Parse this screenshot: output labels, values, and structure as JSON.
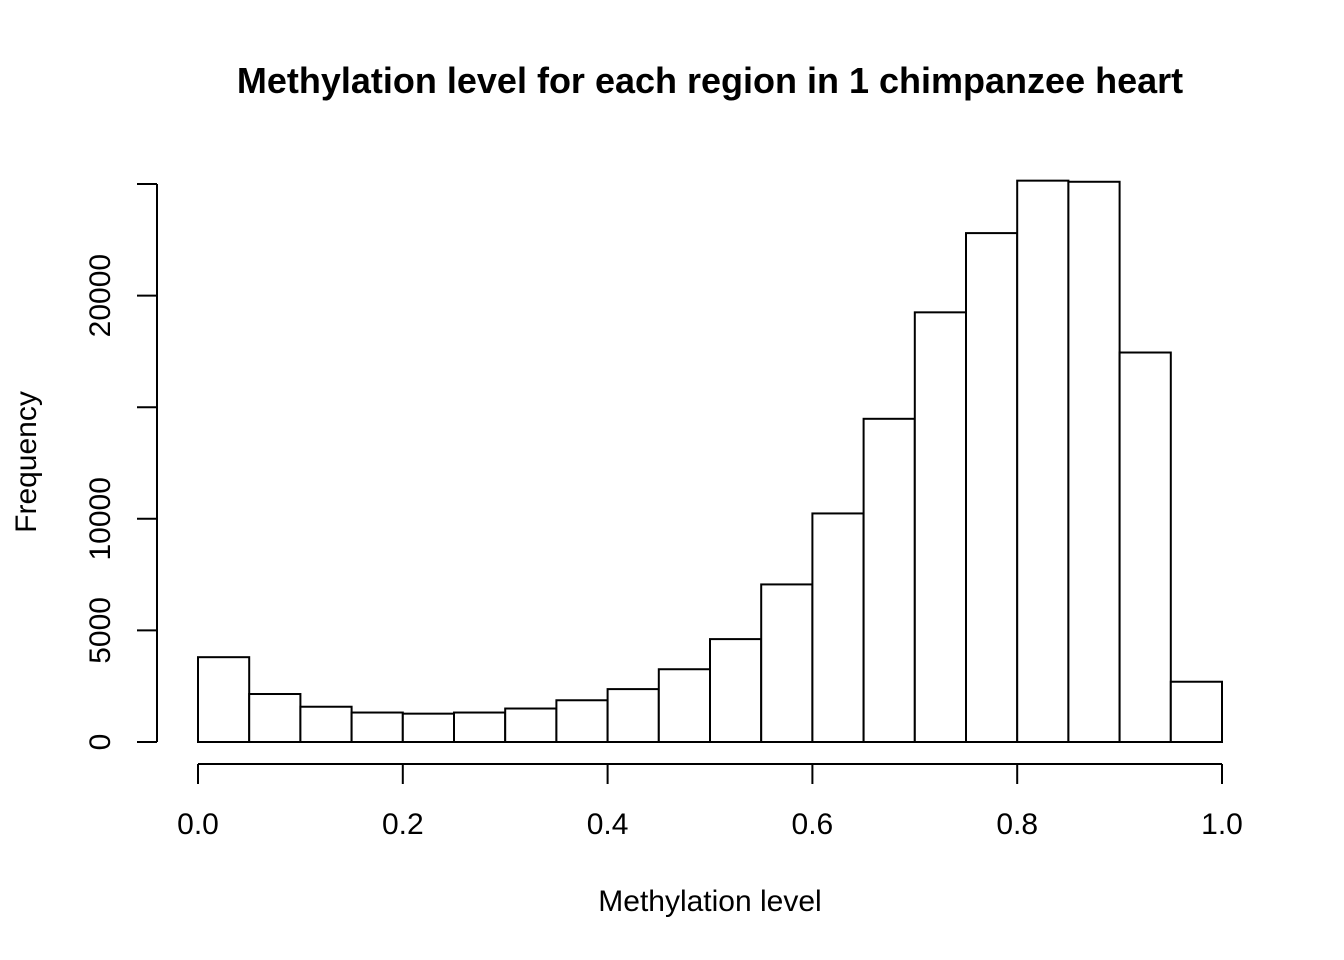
{
  "chart_data": {
    "type": "bar",
    "title": "Methylation level for each region in 1 chimpanzee heart",
    "xlabel": "Methylation level",
    "ylabel": "Frequency",
    "xlim": [
      0,
      1
    ],
    "ylim": [
      0,
      25000
    ],
    "x_ticks": [
      0.0,
      0.2,
      0.4,
      0.6,
      0.8,
      1.0
    ],
    "x_tick_labels": [
      "0.0",
      "0.2",
      "0.4",
      "0.6",
      "0.8",
      "1.0"
    ],
    "y_ticks": [
      0,
      5000,
      10000,
      15000,
      20000,
      25000
    ],
    "y_tick_labels": [
      "0",
      "5000",
      "10000",
      "",
      "20000",
      ""
    ],
    "bin_edges": [
      0.0,
      0.05,
      0.1,
      0.15,
      0.2,
      0.25,
      0.3,
      0.35,
      0.4,
      0.45,
      0.5,
      0.55,
      0.6,
      0.65,
      0.7,
      0.75,
      0.8,
      0.85,
      0.9,
      0.95,
      1.0
    ],
    "values": [
      3800,
      2150,
      1580,
      1320,
      1270,
      1320,
      1500,
      1870,
      2370,
      3260,
      4610,
      7060,
      10240,
      14480,
      19250,
      22800,
      25150,
      25100,
      17450,
      2700
    ],
    "grid": false,
    "legend": "none",
    "bar_fill": "#ffffff",
    "bar_stroke": "#000000"
  }
}
